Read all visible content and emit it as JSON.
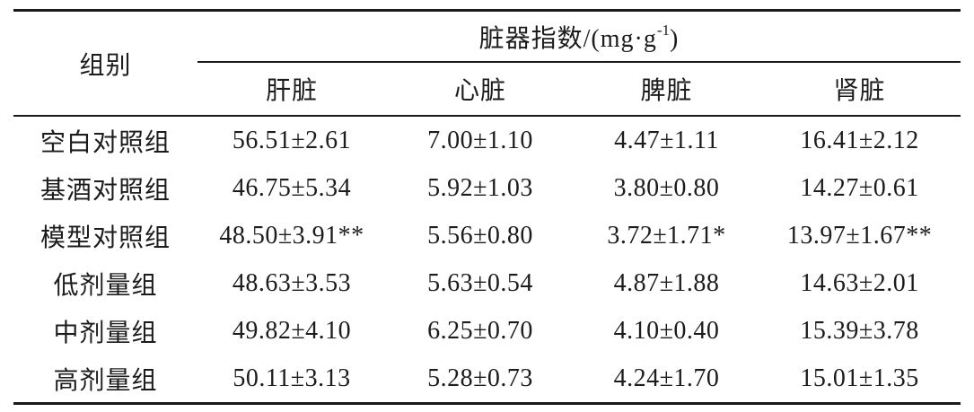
{
  "table": {
    "group_header": "组别",
    "span_header_base": "脏器指数/(mg·g",
    "span_header_sup": "-1",
    "span_header_close": ")",
    "columns": [
      "肝脏",
      "心脏",
      "脾脏",
      "肾脏"
    ],
    "rows": [
      {
        "group": "空白对照组",
        "values": [
          "56.51±2.61",
          "7.00±1.10",
          "4.47±1.11",
          "16.41±2.12"
        ]
      },
      {
        "group": "基酒对照组",
        "values": [
          "46.75±5.34",
          "5.92±1.03",
          "3.80±0.80",
          "14.27±0.61"
        ]
      },
      {
        "group": "模型对照组",
        "values": [
          "48.50±3.91**",
          "5.56±0.80",
          "3.72±1.71*",
          "13.97±1.67**"
        ]
      },
      {
        "group": "低剂量组",
        "values": [
          "48.63±3.53",
          "5.63±0.54",
          "4.87±1.88",
          "14.63±2.01"
        ]
      },
      {
        "group": "中剂量组",
        "values": [
          "49.82±4.10",
          "6.25±0.70",
          "4.10±0.40",
          "15.39±3.78"
        ]
      },
      {
        "group": "高剂量组",
        "values": [
          "50.11±3.13",
          "5.28±0.73",
          "4.24±1.70",
          "15.01±1.35"
        ]
      }
    ],
    "colors": {
      "text": "#1c1c1c",
      "rule": "#1a1a1a",
      "background": "#ffffff"
    }
  }
}
